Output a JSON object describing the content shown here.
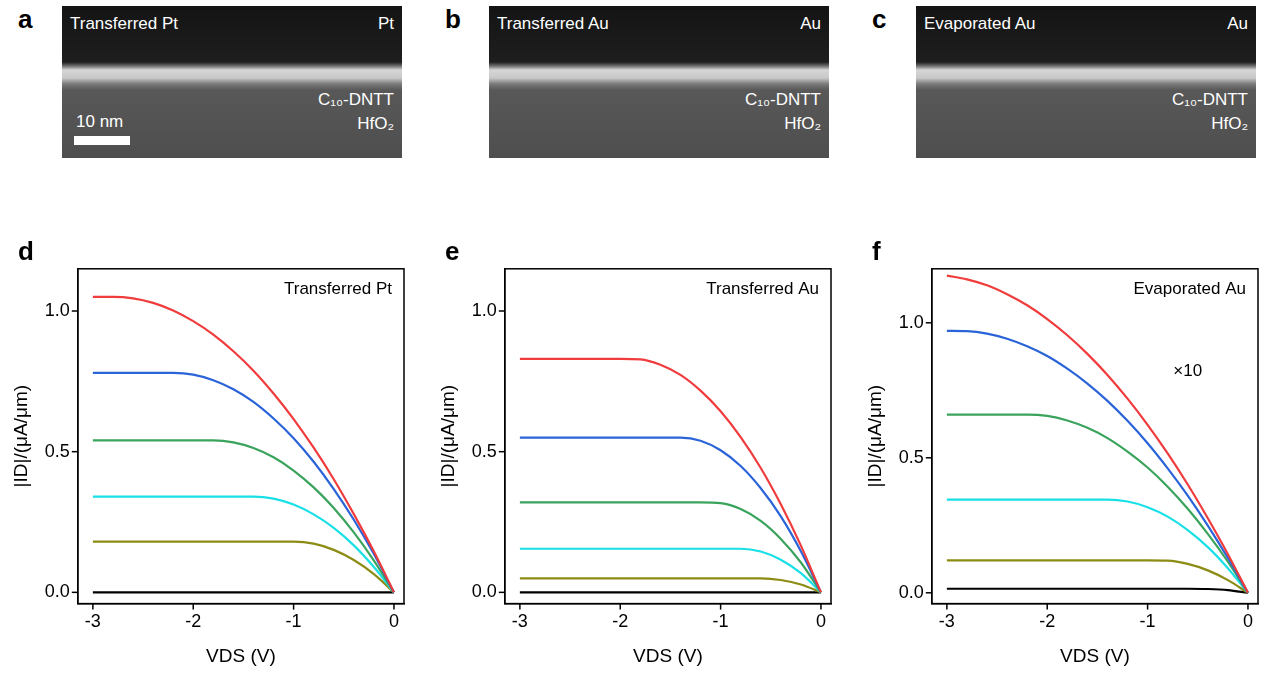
{
  "images": [
    {
      "letter": "a",
      "title": "Transferred Pt",
      "layers": [
        "Pt",
        "C₁₀-DNTT",
        "HfO₂"
      ],
      "scale_bar": "10 nm"
    },
    {
      "letter": "b",
      "title": "Transferred Au",
      "layers": [
        "Au",
        "C₁₀-DNTT",
        "HfO₂"
      ]
    },
    {
      "letter": "c",
      "title": "Evaporated Au",
      "layers": [
        "Au",
        "C₁₀-DNTT",
        "HfO₂"
      ]
    }
  ],
  "chart_data": [
    {
      "type": "line",
      "label": "d",
      "title": "Transferred Pt",
      "x_label": "VDS (V)",
      "y_label": "|ID|/(μA/μm)",
      "grid": false,
      "marker": "none",
      "line_style": "solid",
      "xlim": [
        -3.15,
        0.1
      ],
      "xticks": [
        -3,
        -2,
        -1,
        0
      ],
      "ylim": [
        -0.04,
        1.15
      ],
      "yticks": [
        {
          "value": 0,
          "label": "0.0"
        },
        0.5,
        {
          "value": 1,
          "label": "1.0"
        }
      ],
      "x": [
        -3,
        -2.8,
        -2.6,
        -2.4,
        -2.2,
        -2,
        -1.8,
        -1.6,
        -1.4,
        -1.2,
        -1,
        -0.8,
        -0.6,
        -0.4,
        -0.2,
        0
      ],
      "series": [
        {
          "color": "#f03c3c",
          "values": [
            1.05,
            1.05,
            1.045,
            1.029,
            1.002,
            0.964,
            0.916,
            0.857,
            0.788,
            0.707,
            0.616,
            0.514,
            0.402,
            0.278,
            0.145,
            0
          ]
        },
        {
          "color": "#2a64d8",
          "values": [
            0.78,
            0.78,
            0.78,
            0.78,
            0.78,
            0.774,
            0.754,
            0.722,
            0.677,
            0.618,
            0.548,
            0.464,
            0.367,
            0.258,
            0.136,
            0
          ]
        },
        {
          "color": "#3aa35c",
          "values": [
            0.54,
            0.54,
            0.54,
            0.54,
            0.54,
            0.54,
            0.54,
            0.533,
            0.513,
            0.48,
            0.433,
            0.373,
            0.3,
            0.213,
            0.113,
            0
          ]
        },
        {
          "color": "#19e0e6",
          "values": [
            0.34,
            0.34,
            0.34,
            0.34,
            0.34,
            0.34,
            0.34,
            0.34,
            0.34,
            0.333,
            0.312,
            0.277,
            0.229,
            0.167,
            0.09,
            0
          ]
        },
        {
          "color": "#8c8c14",
          "values": [
            0.18,
            0.18,
            0.18,
            0.18,
            0.18,
            0.18,
            0.18,
            0.18,
            0.18,
            0.18,
            0.18,
            0.173,
            0.151,
            0.115,
            0.065,
            0
          ]
        },
        {
          "color": "#000000",
          "values": [
            0,
            0,
            0,
            0,
            0,
            0,
            0,
            0,
            0,
            0,
            0,
            0,
            0,
            0,
            0,
            0
          ]
        }
      ]
    },
    {
      "type": "line",
      "label": "e",
      "title": "Transferred Au",
      "x_label": "VDS (V)",
      "y_label": "|ID|/(μA/μm)",
      "grid": false,
      "marker": "none",
      "line_style": "solid",
      "xlim": [
        -3.15,
        0.1
      ],
      "xticks": [
        -3,
        -2,
        -1,
        0
      ],
      "ylim": [
        -0.04,
        1.15
      ],
      "yticks": [
        {
          "value": 0,
          "label": "0.0"
        },
        0.5,
        {
          "value": 1,
          "label": "1.0"
        }
      ],
      "x": [
        -3,
        -2.8,
        -2.6,
        -2.4,
        -2.2,
        -2,
        -1.8,
        -1.6,
        -1.4,
        -1.2,
        -1,
        -0.8,
        -0.6,
        -0.4,
        -0.2,
        0
      ],
      "series": [
        {
          "color": "#f03c3c",
          "values": [
            0.83,
            0.83,
            0.83,
            0.83,
            0.83,
            0.83,
            0.828,
            0.809,
            0.773,
            0.717,
            0.644,
            0.552,
            0.442,
            0.313,
            0.166,
            0
          ]
        },
        {
          "color": "#2a64d8",
          "values": [
            0.55,
            0.55,
            0.55,
            0.55,
            0.55,
            0.55,
            0.55,
            0.55,
            0.55,
            0.539,
            0.505,
            0.449,
            0.37,
            0.27,
            0.146,
            0
          ]
        },
        {
          "color": "#3aa35c",
          "values": [
            0.32,
            0.32,
            0.32,
            0.32,
            0.32,
            0.32,
            0.32,
            0.32,
            0.32,
            0.32,
            0.317,
            0.296,
            0.254,
            0.19,
            0.106,
            0
          ]
        },
        {
          "color": "#19e0e6",
          "values": [
            0.155,
            0.155,
            0.155,
            0.155,
            0.155,
            0.155,
            0.155,
            0.155,
            0.155,
            0.155,
            0.155,
            0.155,
            0.145,
            0.116,
            0.068,
            0
          ]
        },
        {
          "color": "#8c8c14",
          "values": [
            0.05,
            0.05,
            0.05,
            0.05,
            0.05,
            0.05,
            0.05,
            0.05,
            0.05,
            0.05,
            0.05,
            0.05,
            0.05,
            0.044,
            0.028,
            0
          ]
        },
        {
          "color": "#000000",
          "values": [
            0,
            0,
            0,
            0,
            0,
            0,
            0,
            0,
            0,
            0,
            0,
            0,
            0,
            0,
            0,
            0
          ]
        }
      ]
    },
    {
      "type": "line",
      "label": "f",
      "title": "Evaporated Au",
      "x_label": "VDS (V)",
      "y_label": "|ID|/(μA/μm)",
      "grid": false,
      "marker": "none",
      "line_style": "solid",
      "xlim": [
        -3.15,
        0.1
      ],
      "xticks": [
        -3,
        -2,
        -1,
        0
      ],
      "ylim": [
        -0.04,
        1.2
      ],
      "yticks": [
        {
          "value": 0,
          "label": "0.0"
        },
        0.5,
        {
          "value": 1,
          "label": "1.0"
        }
      ],
      "annotations": [
        {
          "text": "×10",
          "x": -0.6,
          "y": 0.82
        }
      ],
      "x": [
        -3,
        -2.8,
        -2.6,
        -2.4,
        -2.2,
        -2,
        -1.8,
        -1.6,
        -1.4,
        -1.2,
        -1,
        -0.8,
        -0.6,
        -0.4,
        -0.2,
        0
      ],
      "series": [
        {
          "color": "#f03c3c",
          "values": [
            1.175,
            1.161,
            1.139,
            1.106,
            1.065,
            1.014,
            0.954,
            0.885,
            0.807,
            0.719,
            0.622,
            0.516,
            0.401,
            0.276,
            0.143,
            0
          ]
        },
        {
          "color": "#2a64d8",
          "values": [
            0.97,
            0.969,
            0.96,
            0.941,
            0.913,
            0.877,
            0.83,
            0.775,
            0.711,
            0.637,
            0.554,
            0.461,
            0.36,
            0.249,
            0.129,
            0
          ]
        },
        {
          "color": "#3aa35c",
          "values": [
            0.66,
            0.66,
            0.66,
            0.66,
            0.66,
            0.655,
            0.638,
            0.611,
            0.573,
            0.523,
            0.464,
            0.393,
            0.311,
            0.218,
            0.115,
            0
          ]
        },
        {
          "color": "#19e0e6",
          "values": [
            0.345,
            0.345,
            0.345,
            0.345,
            0.345,
            0.345,
            0.345,
            0.345,
            0.345,
            0.338,
            0.317,
            0.282,
            0.232,
            0.169,
            0.091,
            0
          ]
        },
        {
          "color": "#8c8c14",
          "values": [
            0.12,
            0.12,
            0.12,
            0.12,
            0.12,
            0.12,
            0.12,
            0.12,
            0.12,
            0.12,
            0.12,
            0.119,
            0.107,
            0.083,
            0.047,
            0
          ]
        },
        {
          "color": "#000000",
          "values": [
            0.015,
            0.015,
            0.015,
            0.015,
            0.015,
            0.015,
            0.015,
            0.015,
            0.015,
            0.015,
            0.015,
            0.015,
            0.015,
            0.014,
            0.01,
            0
          ]
        }
      ]
    }
  ]
}
